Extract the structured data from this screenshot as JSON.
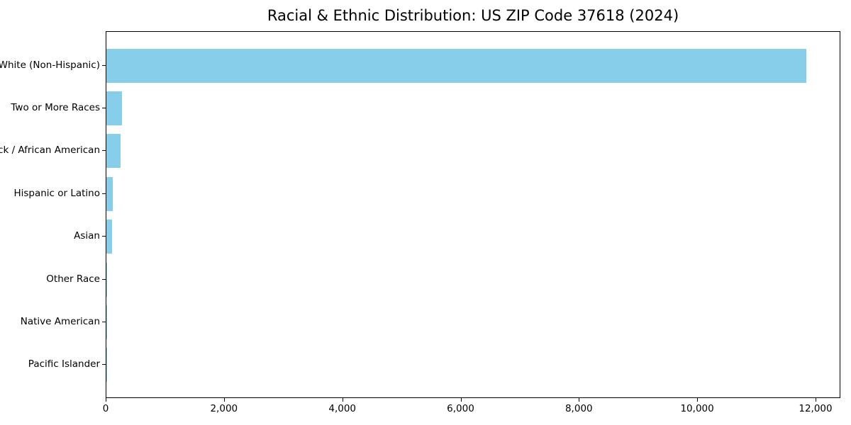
{
  "chart_data": {
    "type": "bar",
    "orientation": "horizontal",
    "title": "Racial & Ethnic Distribution: US ZIP Code 37618 (2024)",
    "categories": [
      "White (Non-Hispanic)",
      "Two or More Races",
      "Black / African American",
      "Hispanic or Latino",
      "Asian",
      "Other Race",
      "Native American",
      "Pacific Islander"
    ],
    "values": [
      11832,
      260,
      243,
      112,
      92,
      12,
      4,
      1
    ],
    "xlabel": "",
    "ylabel": "",
    "xlim": [
      0,
      12420
    ],
    "x_ticks": [
      0,
      2000,
      4000,
      6000,
      8000,
      10000,
      12000
    ],
    "x_tick_labels": [
      "0",
      "2,000",
      "4,000",
      "6,000",
      "8,000",
      "10,000",
      "12,000"
    ],
    "bar_color": "#87CEEB",
    "background_color": "#FFFFFF",
    "text_color": "#000000",
    "grid": false,
    "legend_position": "none"
  }
}
